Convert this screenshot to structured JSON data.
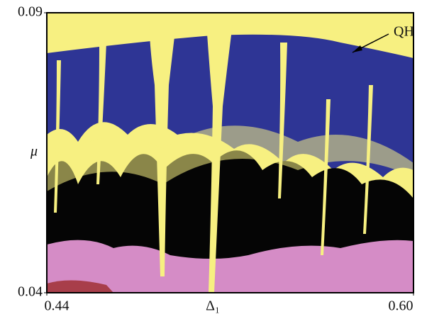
{
  "chart_data": {
    "type": "map",
    "xlabel": "Δ₁",
    "ylabel": "μ",
    "xlim": [
      0.44,
      0.6
    ],
    "ylim": [
      0.04,
      0.09
    ],
    "xticks": [
      0.44,
      {
        "value": 0.6,
        "label": "0.60"
      }
    ],
    "yticks": [
      0.04,
      0.09
    ],
    "annotations": [
      {
        "text": "QH"
      }
    ]
  }
}
